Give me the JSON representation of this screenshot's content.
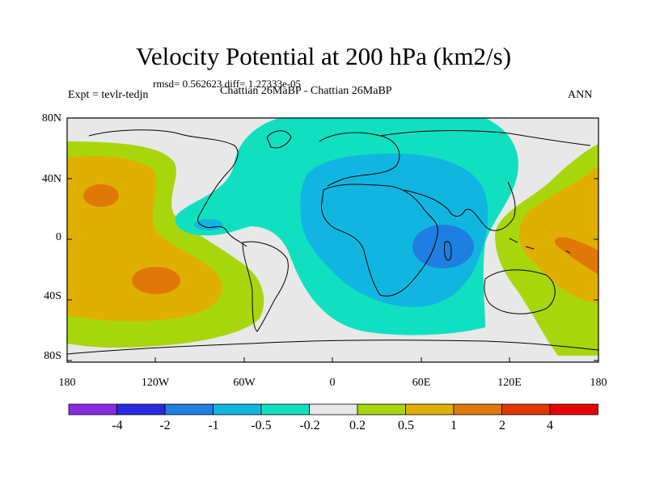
{
  "title": "Velocity Potential at 200 hPa (km2/s)",
  "subtitle": "rmsd= 0.562623 diff= 1.27333e-05",
  "left_label": "Expt = tevlr-tedjn",
  "center_label": "Chattian  26MaBP - Chattian  26MaBP",
  "right_label": "ANN",
  "y_axis_labels": [
    "80N",
    "40N",
    "0",
    "40S",
    "80S"
  ],
  "x_axis_labels": [
    "180",
    "120W",
    "60W",
    "0",
    "60E",
    "120E",
    "180"
  ],
  "colorbar": {
    "labels": [
      "-4",
      "-2",
      "-1",
      "-0.5",
      "-0.2",
      "0.2",
      "0.5",
      "1",
      "2",
      "4"
    ],
    "colors": [
      "#8a2be2",
      "#2a2ae0",
      "#1e7fe0",
      "#10b6e0",
      "#10e0c0",
      "#e8e8e8",
      "#a8d60c",
      "#e0b000",
      "#e07808",
      "#e03800",
      "#e80000"
    ]
  },
  "chart_data": {
    "type": "contour-map",
    "title": "Velocity Potential at 200 hPa (km2/s)",
    "levels": [
      -4,
      -2,
      -1,
      -0.5,
      -0.2,
      0.2,
      0.5,
      1,
      2,
      4
    ],
    "lon_range": [
      -180,
      180
    ],
    "lat_range": [
      -90,
      90
    ],
    "features": [
      {
        "region": "Pacific west (180-120W)",
        "sign": "positive",
        "max_level": "2"
      },
      {
        "region": "Pacific east of 140E",
        "sign": "positive",
        "max_level": "2"
      },
      {
        "region": "Africa / Indian Ocean",
        "sign": "negative",
        "min_level": "-2"
      }
    ]
  }
}
